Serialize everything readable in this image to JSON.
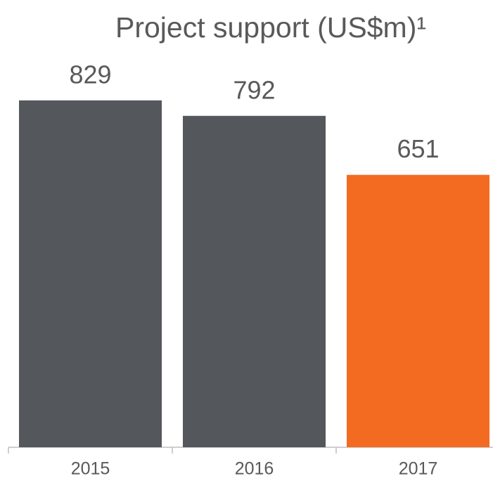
{
  "chart_data": {
    "type": "bar",
    "title": "Project support (US$m)¹",
    "categories": [
      "2015",
      "2016",
      "2017"
    ],
    "values": [
      829,
      792,
      651
    ],
    "colors": [
      "#54575c",
      "#54575c",
      "#f26b21"
    ],
    "ylim": [
      0,
      1000
    ]
  }
}
